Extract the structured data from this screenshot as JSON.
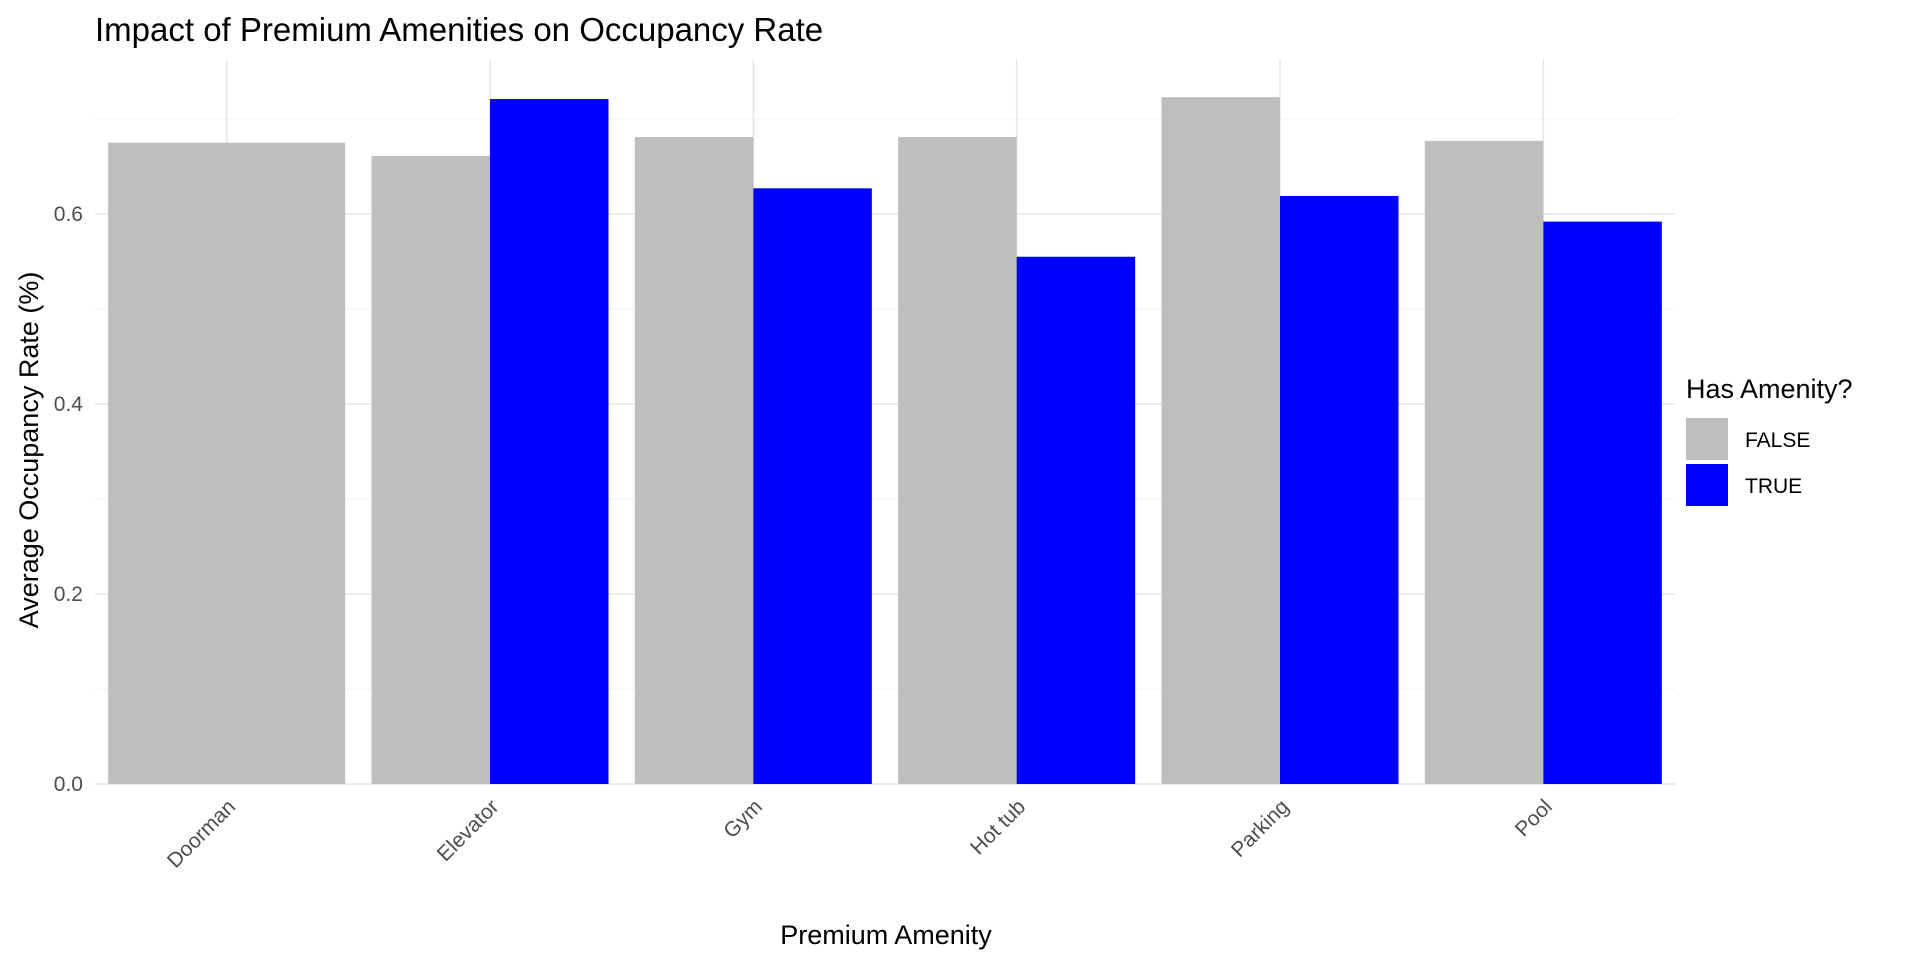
{
  "chart_data": {
    "type": "bar",
    "title": "Impact of Premium Amenities on Occupancy Rate",
    "xlabel": "Premium Amenity",
    "ylabel": "Average Occupancy Rate (%)",
    "categories": [
      "Doorman",
      "Elevator",
      "Gym",
      "Hot tub",
      "Parking",
      "Pool"
    ],
    "series": [
      {
        "name": "FALSE",
        "color": "#bebebe",
        "values": [
          0.675,
          0.661,
          0.681,
          0.681,
          0.723,
          0.677
        ]
      },
      {
        "name": "TRUE",
        "color": "#0000ff",
        "values": [
          null,
          0.721,
          0.627,
          0.555,
          0.619,
          0.592
        ]
      }
    ],
    "yticks": [
      0.0,
      0.2,
      0.4,
      0.6
    ],
    "ytick_labels": [
      "0.0",
      "0.2",
      "0.4",
      "0.6"
    ],
    "ylim": [
      0,
      0.76
    ],
    "grid": true,
    "legend": {
      "title": "Has Amenity?",
      "position": "right"
    }
  }
}
